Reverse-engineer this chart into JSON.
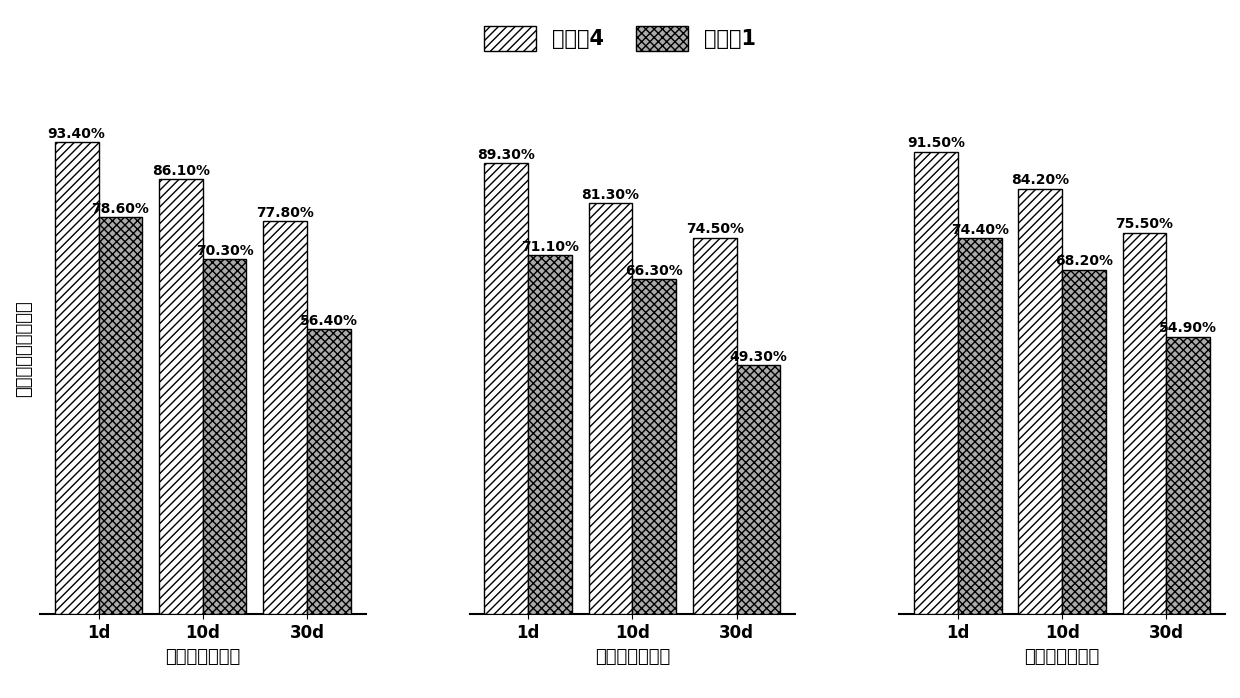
{
  "title_part1": "实施例4",
  "title_part2": "对比例1",
  "ylabel": "力学性能强度保持率",
  "groups": [
    {
      "xlabel": "拉伸强度保持率",
      "days": [
        "1d",
        "10d",
        "30d"
      ],
      "series1": [
        93.4,
        86.1,
        77.8
      ],
      "series2": [
        78.6,
        70.3,
        56.4
      ]
    },
    {
      "xlabel": "弯曲强度保持率",
      "days": [
        "1d",
        "10d",
        "30d"
      ],
      "series1": [
        89.3,
        81.3,
        74.5
      ],
      "series2": [
        71.1,
        66.3,
        49.3
      ]
    },
    {
      "xlabel": "冲击强度保持率",
      "days": [
        "1d",
        "10d",
        "30d"
      ],
      "series1": [
        91.5,
        84.2,
        75.5
      ],
      "series2": [
        74.4,
        68.2,
        54.9
      ]
    }
  ],
  "bar_width": 0.42,
  "hatch_series1": "////",
  "hatch_series2": "xxxx",
  "color_series1": "#ffffff",
  "color_series2": "#aaaaaa",
  "edgecolor": "#000000",
  "fontsize_label": 12,
  "fontsize_title": 15,
  "fontsize_value": 10,
  "fontsize_xlabel": 13,
  "fontsize_ylabel": 13,
  "legend_label1": "实施例4",
  "legend_label2": "对比例1",
  "background_color": "#ffffff"
}
